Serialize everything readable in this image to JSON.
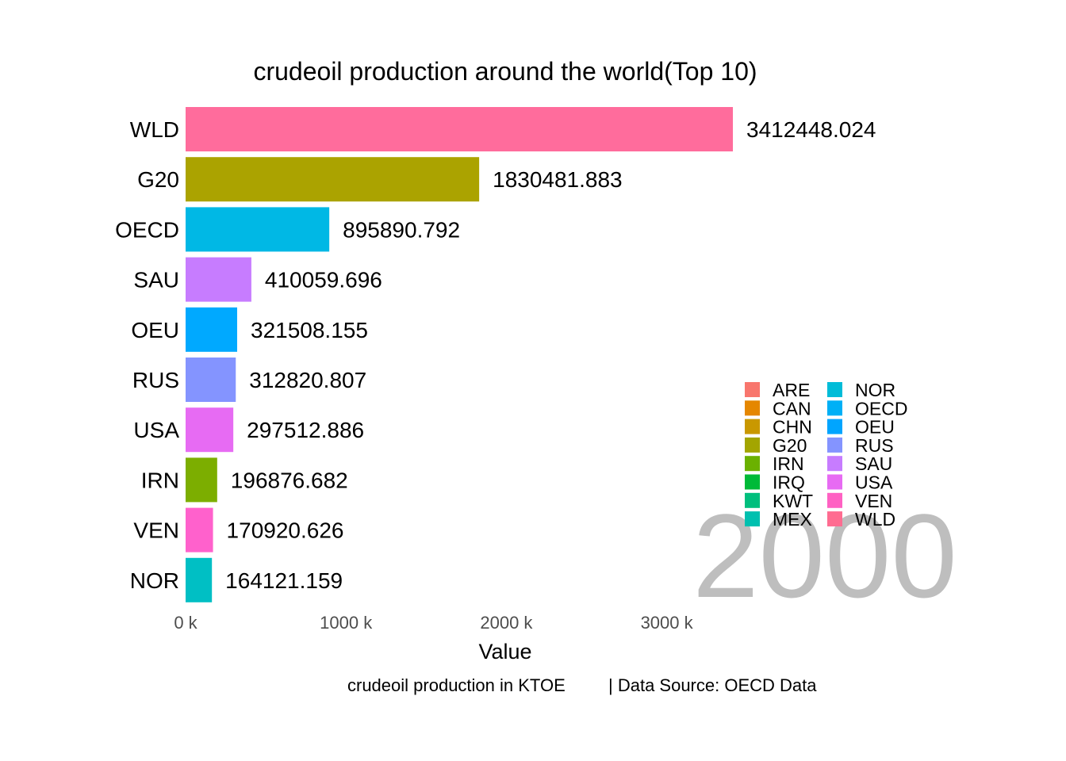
{
  "chart_data": {
    "type": "bar",
    "orientation": "horizontal",
    "title": "crudeoil production around the world(Top 10)",
    "xlabel": "Value",
    "caption_left": "crudeoil production in KTOE",
    "caption_right": "| Data Source: OECD Data",
    "year": "2000",
    "categories": [
      "WLD",
      "G20",
      "OECD",
      "SAU",
      "OEU",
      "RUS",
      "USA",
      "IRN",
      "VEN",
      "NOR"
    ],
    "values": [
      3412448.024,
      1830481.883,
      895890.792,
      410059.696,
      321508.155,
      312820.807,
      297512.886,
      196876.682,
      170920.626,
      164121.159
    ],
    "value_labels": [
      "3412448.024",
      "1830481.883",
      "895890.792",
      "410059.696",
      "321508.155",
      "312820.807",
      "297512.886",
      "196876.682",
      "170920.626",
      "164121.159"
    ],
    "colors": [
      "#FF6C9C",
      "#ABA300",
      "#00B8E5",
      "#C77CFF",
      "#00A9FF",
      "#8494FF",
      "#E76BF3",
      "#7CAE00",
      "#FF61CC",
      "#00BFC4"
    ],
    "xlim": [
      0,
      3412448.024
    ],
    "x_ticks": [
      0,
      1000000,
      2000000,
      3000000
    ],
    "x_tick_labels": [
      "0  k",
      "1000  k",
      "2000  k",
      "3000  k"
    ],
    "grid": false,
    "legend_position": "bottom-right",
    "legend": [
      {
        "label": "ARE",
        "color": "#F8766D"
      },
      {
        "label": "CAN",
        "color": "#E58700"
      },
      {
        "label": "CHN",
        "color": "#C99800"
      },
      {
        "label": "G20",
        "color": "#A3A500"
      },
      {
        "label": "IRN",
        "color": "#6BB100"
      },
      {
        "label": "IRQ",
        "color": "#00BA38"
      },
      {
        "label": "KWT",
        "color": "#00BF7D"
      },
      {
        "label": "MEX",
        "color": "#00C0AF"
      },
      {
        "label": "NOR",
        "color": "#00BCD8"
      },
      {
        "label": "OECD",
        "color": "#00B0F6"
      },
      {
        "label": "OEU",
        "color": "#00A5FF"
      },
      {
        "label": "RUS",
        "color": "#8494FF"
      },
      {
        "label": "SAU",
        "color": "#C77CFF"
      },
      {
        "label": "USA",
        "color": "#E76BF3"
      },
      {
        "label": "VEN",
        "color": "#FF61C3"
      },
      {
        "label": "WLD",
        "color": "#FF6C91"
      }
    ]
  }
}
